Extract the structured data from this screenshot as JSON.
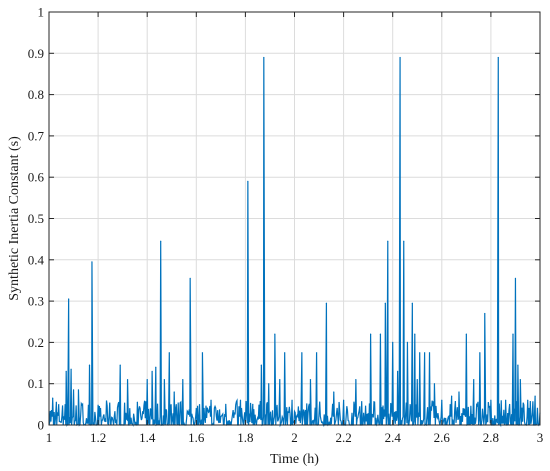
{
  "chart_data": {
    "type": "line",
    "title": "",
    "xlabel": "Time (h)",
    "ylabel": "Synthetic Inertia Constant (s)",
    "xlim": [
      1,
      3
    ],
    "ylim": [
      0,
      1
    ],
    "xticks": [
      1,
      1.2,
      1.4,
      1.6,
      1.8,
      2,
      2.2,
      2.4,
      2.6,
      2.8,
      3
    ],
    "xtick_labels": [
      "1",
      "1.2",
      "1.4",
      "1.6",
      "1.8",
      "2",
      "2.2",
      "2.4",
      "2.6",
      "2.8",
      "3"
    ],
    "yticks": [
      0,
      0.1,
      0.2,
      0.3,
      0.4,
      0.5,
      0.6,
      0.7,
      0.8,
      0.9,
      1
    ],
    "ytick_labels": [
      "0",
      "0.1",
      "0.2",
      "0.3",
      "0.4",
      "0.5",
      "0.6",
      "0.7",
      "0.8",
      "0.9",
      "1"
    ],
    "grid": true,
    "series_color": "#0072BD",
    "baseline_max": 0.06,
    "spikes": [
      {
        "x": 1.015,
        "y": 0.065
      },
      {
        "x": 1.03,
        "y": 0.055
      },
      {
        "x": 1.07,
        "y": 0.13
      },
      {
        "x": 1.08,
        "y": 0.305
      },
      {
        "x": 1.09,
        "y": 0.135
      },
      {
        "x": 1.1,
        "y": 0.085
      },
      {
        "x": 1.12,
        "y": 0.085
      },
      {
        "x": 1.165,
        "y": 0.145
      },
      {
        "x": 1.175,
        "y": 0.395
      },
      {
        "x": 1.21,
        "y": 0.04
      },
      {
        "x": 1.29,
        "y": 0.145
      },
      {
        "x": 1.32,
        "y": 0.11
      },
      {
        "x": 1.36,
        "y": 0.055
      },
      {
        "x": 1.4,
        "y": 0.11
      },
      {
        "x": 1.42,
        "y": 0.13
      },
      {
        "x": 1.435,
        "y": 0.14
      },
      {
        "x": 1.455,
        "y": 0.445
      },
      {
        "x": 1.47,
        "y": 0.11
      },
      {
        "x": 1.49,
        "y": 0.175
      },
      {
        "x": 1.51,
        "y": 0.08
      },
      {
        "x": 1.545,
        "y": 0.11
      },
      {
        "x": 1.575,
        "y": 0.355
      },
      {
        "x": 1.6,
        "y": 0.04
      },
      {
        "x": 1.625,
        "y": 0.175
      },
      {
        "x": 1.66,
        "y": 0.06
      },
      {
        "x": 1.72,
        "y": 0.05
      },
      {
        "x": 1.78,
        "y": 0.06
      },
      {
        "x": 1.81,
        "y": 0.59
      },
      {
        "x": 1.83,
        "y": 0.05
      },
      {
        "x": 1.865,
        "y": 0.145
      },
      {
        "x": 1.875,
        "y": 0.89
      },
      {
        "x": 1.895,
        "y": 0.1
      },
      {
        "x": 1.92,
        "y": 0.22
      },
      {
        "x": 1.94,
        "y": 0.11
      },
      {
        "x": 1.96,
        "y": 0.175
      },
      {
        "x": 1.99,
        "y": 0.06
      },
      {
        "x": 2.03,
        "y": 0.175
      },
      {
        "x": 2.065,
        "y": 0.11
      },
      {
        "x": 2.09,
        "y": 0.175
      },
      {
        "x": 2.13,
        "y": 0.295
      },
      {
        "x": 2.16,
        "y": 0.08
      },
      {
        "x": 2.2,
        "y": 0.06
      },
      {
        "x": 2.25,
        "y": 0.11
      },
      {
        "x": 2.31,
        "y": 0.22
      },
      {
        "x": 2.35,
        "y": 0.22
      },
      {
        "x": 2.37,
        "y": 0.295
      },
      {
        "x": 2.38,
        "y": 0.445
      },
      {
        "x": 2.4,
        "y": 0.2
      },
      {
        "x": 2.42,
        "y": 0.13
      },
      {
        "x": 2.43,
        "y": 0.89
      },
      {
        "x": 2.445,
        "y": 0.445
      },
      {
        "x": 2.46,
        "y": 0.2
      },
      {
        "x": 2.48,
        "y": 0.295
      },
      {
        "x": 2.49,
        "y": 0.22
      },
      {
        "x": 2.5,
        "y": 0.11
      },
      {
        "x": 2.51,
        "y": 0.175
      },
      {
        "x": 2.53,
        "y": 0.175
      },
      {
        "x": 2.55,
        "y": 0.175
      },
      {
        "x": 2.57,
        "y": 0.1
      },
      {
        "x": 2.6,
        "y": 0.06
      },
      {
        "x": 2.64,
        "y": 0.07
      },
      {
        "x": 2.67,
        "y": 0.08
      },
      {
        "x": 2.7,
        "y": 0.22
      },
      {
        "x": 2.73,
        "y": 0.11
      },
      {
        "x": 2.755,
        "y": 0.175
      },
      {
        "x": 2.775,
        "y": 0.27
      },
      {
        "x": 2.8,
        "y": 0.06
      },
      {
        "x": 2.83,
        "y": 0.89
      },
      {
        "x": 2.86,
        "y": 0.06
      },
      {
        "x": 2.89,
        "y": 0.22
      },
      {
        "x": 2.9,
        "y": 0.355
      },
      {
        "x": 2.91,
        "y": 0.145
      },
      {
        "x": 2.92,
        "y": 0.11
      },
      {
        "x": 2.95,
        "y": 0.06
      },
      {
        "x": 2.98,
        "y": 0.07
      }
    ]
  }
}
